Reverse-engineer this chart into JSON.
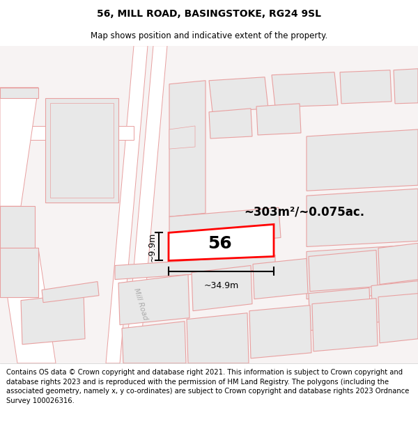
{
  "title": "56, MILL ROAD, BASINGSTOKE, RG24 9SL",
  "subtitle": "Map shows position and indicative extent of the property.",
  "footer": "Contains OS data © Crown copyright and database right 2021. This information is subject to Crown copyright and database rights 2023 and is reproduced with the permission of HM Land Registry. The polygons (including the associated geometry, namely x, y co-ordinates) are subject to Crown copyright and database rights 2023 Ordnance Survey 100026316.",
  "area_label": "~303m²/~0.075ac.",
  "width_label": "~34.9m",
  "height_label": "~9.9m",
  "number_label": "56",
  "map_bg": "#f7f3f3",
  "parcel_fill": "#e8e8e8",
  "parcel_edge": "#e8a0a0",
  "road_fill": "#ffffff",
  "road_edge": "#e8a0a0",
  "highlight_color": "#ff0000",
  "title_fontsize": 10,
  "subtitle_fontsize": 8.5,
  "footer_fontsize": 7.2,
  "label_color": "#888888"
}
